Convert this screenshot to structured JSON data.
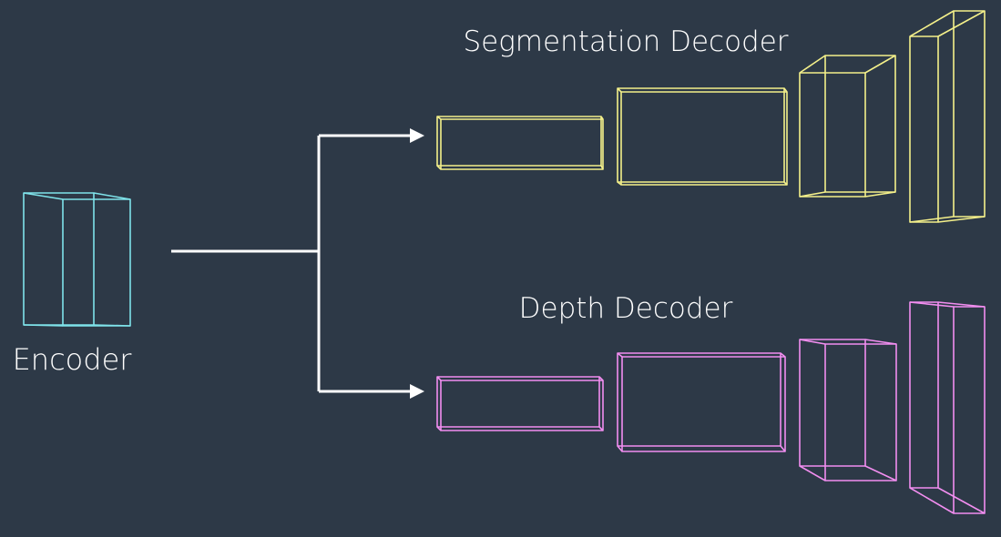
{
  "labels": {
    "encoder": "Encoder",
    "segmentation_decoder": "Segmentation Decoder",
    "depth_decoder": "Depth Decoder"
  },
  "colors": {
    "background": "#2d3947",
    "encoder": "#7fe3ea",
    "segmentation": "#f4f08a",
    "depth": "#f28ef0",
    "arrows": "#ffffff"
  }
}
